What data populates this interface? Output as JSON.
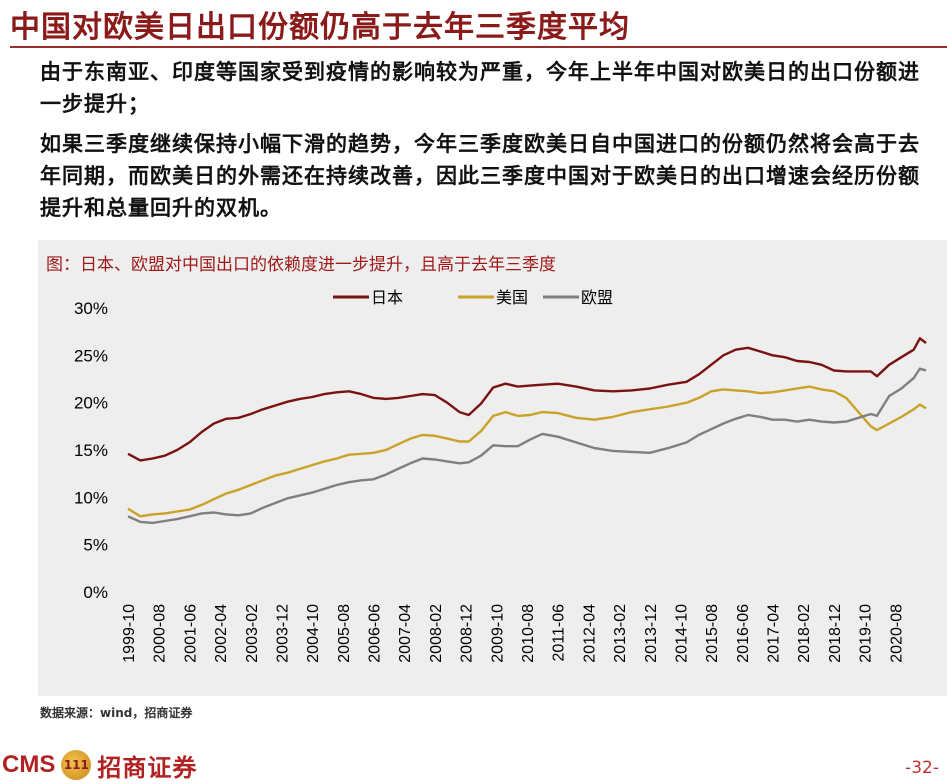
{
  "title": "中国对欧美日出口份额仍高于去年三季度平均",
  "bullets": [
    "由于东南亚、印度等国家受到疫情的影响较为严重，今年上半年中国对欧美日的出口份额进一步提升；",
    "如果三季度继续保持小幅下滑的趋势，今年三季度欧美日自中国进口的份额仍然将会高于去年同期，而欧美日的外需还在持续改善，因此三季度中国对于欧美日的出口增速会经历份额提升和总量回升的双机。"
  ],
  "chart_caption": "图：日本、欧盟对中国出口的依赖度进一步提升，且高于去年三季度",
  "source": "数据来源：wind，招商证券",
  "footer": {
    "cms": "CMS",
    "mark": "111",
    "company": "招商证券",
    "page": "-32-"
  },
  "colors": {
    "title": "#8b1a1a",
    "japan": "#7b1212",
    "usa": "#c9a227",
    "eu": "#7f7f7f",
    "panel": "#eeeeee"
  },
  "chart_data": {
    "type": "line",
    "title": "",
    "xlabel": "",
    "ylabel": "",
    "ylim": [
      0,
      30
    ],
    "y_ticks": [
      "0%",
      "5%",
      "10%",
      "15%",
      "20%",
      "25%",
      "30%"
    ],
    "y_tick_values": [
      0,
      5,
      10,
      15,
      20,
      25,
      30
    ],
    "x_tick_labels": [
      "1999-10",
      "2000-08",
      "2001-06",
      "2002-04",
      "2003-02",
      "2003-12",
      "2004-10",
      "2005-08",
      "2006-06",
      "2007-04",
      "2008-02",
      "2008-12",
      "2009-10",
      "2010-08",
      "2011-06",
      "2012-04",
      "2013-02",
      "2013-12",
      "2014-10",
      "2015-08",
      "2016-06",
      "2017-04",
      "2018-02",
      "2018-12",
      "2019-10",
      "2020-08"
    ],
    "x_range": [
      "1999-10",
      "2021-06"
    ],
    "grid": false,
    "legend_position": "top",
    "series": [
      {
        "name": "日本",
        "color_key": "japan",
        "points": [
          [
            "1999-10",
            14.6
          ],
          [
            "2000-02",
            13.9
          ],
          [
            "2000-06",
            14.1
          ],
          [
            "2000-10",
            14.4
          ],
          [
            "2001-02",
            15.0
          ],
          [
            "2001-06",
            15.8
          ],
          [
            "2001-10",
            16.9
          ],
          [
            "2002-02",
            17.8
          ],
          [
            "2002-06",
            18.3
          ],
          [
            "2002-10",
            18.4
          ],
          [
            "2003-02",
            18.8
          ],
          [
            "2003-06",
            19.3
          ],
          [
            "2003-10",
            19.7
          ],
          [
            "2004-02",
            20.1
          ],
          [
            "2004-06",
            20.4
          ],
          [
            "2004-10",
            20.6
          ],
          [
            "2005-02",
            20.9
          ],
          [
            "2005-06",
            21.1
          ],
          [
            "2005-10",
            21.2
          ],
          [
            "2006-02",
            20.9
          ],
          [
            "2006-06",
            20.5
          ],
          [
            "2006-10",
            20.4
          ],
          [
            "2007-02",
            20.5
          ],
          [
            "2007-06",
            20.7
          ],
          [
            "2007-10",
            20.9
          ],
          [
            "2008-02",
            20.8
          ],
          [
            "2008-06",
            20.0
          ],
          [
            "2008-10",
            19.0
          ],
          [
            "2009-01",
            18.7
          ],
          [
            "2009-05",
            19.9
          ],
          [
            "2009-09",
            21.6
          ],
          [
            "2010-01",
            22.0
          ],
          [
            "2010-05",
            21.7
          ],
          [
            "2010-09",
            21.8
          ],
          [
            "2011-01",
            21.9
          ],
          [
            "2011-06",
            22.0
          ],
          [
            "2011-12",
            21.7
          ],
          [
            "2012-06",
            21.3
          ],
          [
            "2012-12",
            21.2
          ],
          [
            "2013-06",
            21.3
          ],
          [
            "2013-12",
            21.5
          ],
          [
            "2014-06",
            21.9
          ],
          [
            "2014-12",
            22.2
          ],
          [
            "2015-04",
            23.0
          ],
          [
            "2015-08",
            24.0
          ],
          [
            "2015-12",
            25.0
          ],
          [
            "2016-04",
            25.6
          ],
          [
            "2016-08",
            25.8
          ],
          [
            "2016-12",
            25.4
          ],
          [
            "2017-04",
            25.0
          ],
          [
            "2017-08",
            24.8
          ],
          [
            "2017-12",
            24.4
          ],
          [
            "2018-04",
            24.3
          ],
          [
            "2018-08",
            24.0
          ],
          [
            "2018-12",
            23.4
          ],
          [
            "2019-04",
            23.3
          ],
          [
            "2019-08",
            23.3
          ],
          [
            "2019-12",
            23.3
          ],
          [
            "2020-02",
            22.8
          ],
          [
            "2020-06",
            24.0
          ],
          [
            "2020-10",
            24.8
          ],
          [
            "2021-02",
            25.6
          ],
          [
            "2021-04",
            26.8
          ],
          [
            "2021-06",
            26.3
          ]
        ]
      },
      {
        "name": "美国",
        "color_key": "usa",
        "points": [
          [
            "1999-10",
            8.8
          ],
          [
            "2000-02",
            8.0
          ],
          [
            "2000-06",
            8.2
          ],
          [
            "2000-10",
            8.3
          ],
          [
            "2001-02",
            8.5
          ],
          [
            "2001-06",
            8.7
          ],
          [
            "2001-10",
            9.2
          ],
          [
            "2002-02",
            9.8
          ],
          [
            "2002-06",
            10.4
          ],
          [
            "2002-10",
            10.8
          ],
          [
            "2003-02",
            11.3
          ],
          [
            "2003-06",
            11.8
          ],
          [
            "2003-10",
            12.3
          ],
          [
            "2004-02",
            12.6
          ],
          [
            "2004-06",
            13.0
          ],
          [
            "2004-10",
            13.4
          ],
          [
            "2005-02",
            13.8
          ],
          [
            "2005-06",
            14.1
          ],
          [
            "2005-10",
            14.5
          ],
          [
            "2006-02",
            14.6
          ],
          [
            "2006-06",
            14.7
          ],
          [
            "2006-10",
            15.0
          ],
          [
            "2007-02",
            15.6
          ],
          [
            "2007-06",
            16.2
          ],
          [
            "2007-10",
            16.6
          ],
          [
            "2008-02",
            16.5
          ],
          [
            "2008-06",
            16.2
          ],
          [
            "2008-10",
            15.9
          ],
          [
            "2009-01",
            15.9
          ],
          [
            "2009-05",
            17.0
          ],
          [
            "2009-09",
            18.6
          ],
          [
            "2010-01",
            19.0
          ],
          [
            "2010-05",
            18.6
          ],
          [
            "2010-09",
            18.7
          ],
          [
            "2011-01",
            19.0
          ],
          [
            "2011-06",
            18.9
          ],
          [
            "2011-12",
            18.4
          ],
          [
            "2012-06",
            18.2
          ],
          [
            "2012-12",
            18.5
          ],
          [
            "2013-06",
            19.0
          ],
          [
            "2013-12",
            19.3
          ],
          [
            "2014-06",
            19.6
          ],
          [
            "2014-12",
            20.0
          ],
          [
            "2015-04",
            20.5
          ],
          [
            "2015-08",
            21.2
          ],
          [
            "2015-12",
            21.4
          ],
          [
            "2016-04",
            21.3
          ],
          [
            "2016-08",
            21.2
          ],
          [
            "2016-12",
            21.0
          ],
          [
            "2017-04",
            21.1
          ],
          [
            "2017-08",
            21.3
          ],
          [
            "2017-12",
            21.5
          ],
          [
            "2018-04",
            21.7
          ],
          [
            "2018-08",
            21.4
          ],
          [
            "2018-12",
            21.2
          ],
          [
            "2019-04",
            20.5
          ],
          [
            "2019-08",
            19.0
          ],
          [
            "2019-12",
            17.5
          ],
          [
            "2020-02",
            17.1
          ],
          [
            "2020-06",
            17.8
          ],
          [
            "2020-10",
            18.5
          ],
          [
            "2021-02",
            19.3
          ],
          [
            "2021-04",
            19.8
          ],
          [
            "2021-06",
            19.4
          ]
        ]
      },
      {
        "name": "欧盟",
        "color_key": "eu",
        "points": [
          [
            "1999-10",
            8.0
          ],
          [
            "2000-02",
            7.4
          ],
          [
            "2000-06",
            7.3
          ],
          [
            "2000-10",
            7.5
          ],
          [
            "2001-02",
            7.7
          ],
          [
            "2001-06",
            8.0
          ],
          [
            "2001-10",
            8.3
          ],
          [
            "2002-02",
            8.4
          ],
          [
            "2002-06",
            8.2
          ],
          [
            "2002-10",
            8.1
          ],
          [
            "2003-02",
            8.3
          ],
          [
            "2003-06",
            8.9
          ],
          [
            "2003-10",
            9.4
          ],
          [
            "2004-02",
            9.9
          ],
          [
            "2004-06",
            10.2
          ],
          [
            "2004-10",
            10.5
          ],
          [
            "2005-02",
            10.9
          ],
          [
            "2005-06",
            11.3
          ],
          [
            "2005-10",
            11.6
          ],
          [
            "2006-02",
            11.8
          ],
          [
            "2006-06",
            11.9
          ],
          [
            "2006-10",
            12.4
          ],
          [
            "2007-02",
            13.0
          ],
          [
            "2007-06",
            13.6
          ],
          [
            "2007-10",
            14.1
          ],
          [
            "2008-02",
            14.0
          ],
          [
            "2008-06",
            13.8
          ],
          [
            "2008-10",
            13.6
          ],
          [
            "2009-01",
            13.7
          ],
          [
            "2009-05",
            14.4
          ],
          [
            "2009-09",
            15.5
          ],
          [
            "2010-01",
            15.4
          ],
          [
            "2010-05",
            15.4
          ],
          [
            "2010-09",
            16.1
          ],
          [
            "2011-01",
            16.7
          ],
          [
            "2011-06",
            16.4
          ],
          [
            "2011-12",
            15.8
          ],
          [
            "2012-06",
            15.2
          ],
          [
            "2012-12",
            14.9
          ],
          [
            "2013-06",
            14.8
          ],
          [
            "2013-12",
            14.7
          ],
          [
            "2014-06",
            15.2
          ],
          [
            "2014-12",
            15.8
          ],
          [
            "2015-04",
            16.6
          ],
          [
            "2015-08",
            17.2
          ],
          [
            "2015-12",
            17.8
          ],
          [
            "2016-04",
            18.3
          ],
          [
            "2016-08",
            18.7
          ],
          [
            "2016-12",
            18.5
          ],
          [
            "2017-04",
            18.2
          ],
          [
            "2017-08",
            18.2
          ],
          [
            "2017-12",
            18.0
          ],
          [
            "2018-04",
            18.2
          ],
          [
            "2018-08",
            18.0
          ],
          [
            "2018-12",
            17.9
          ],
          [
            "2019-04",
            18.0
          ],
          [
            "2019-08",
            18.4
          ],
          [
            "2019-12",
            18.8
          ],
          [
            "2020-02",
            18.6
          ],
          [
            "2020-06",
            20.7
          ],
          [
            "2020-10",
            21.5
          ],
          [
            "2021-02",
            22.6
          ],
          [
            "2021-04",
            23.6
          ],
          [
            "2021-06",
            23.4
          ]
        ]
      }
    ]
  }
}
